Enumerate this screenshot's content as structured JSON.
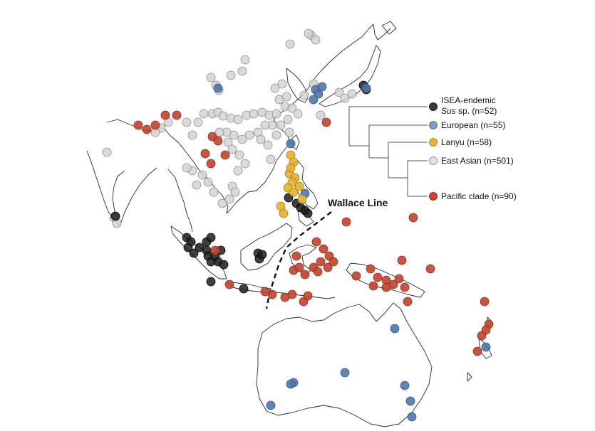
{
  "legend": {
    "items": [
      {
        "label_line1": "ISEA-endemic",
        "label_italic": "Sus",
        "label_rest": " sp. (n=52)",
        "color": "#3a3a3a"
      },
      {
        "label": "European (n=55)",
        "color": "#7f9ac0"
      },
      {
        "label": "Lanyu (n=58)",
        "color": "#e8b53a"
      },
      {
        "label": "East Asian (n=501)",
        "color": "#dcdcdc"
      },
      {
        "label": "Pacific clade (n=90)",
        "color": "#c8462e"
      }
    ]
  },
  "annotation": {
    "wallace_line_label": "Wallace Line"
  },
  "colors": {
    "isea": "#1f1f1f",
    "european": "#4f76a8",
    "lanyu": "#e6b12c",
    "east_asian": "#d4d4d4",
    "pacific": "#c2432c",
    "coast": "#2a2a2a"
  }
}
